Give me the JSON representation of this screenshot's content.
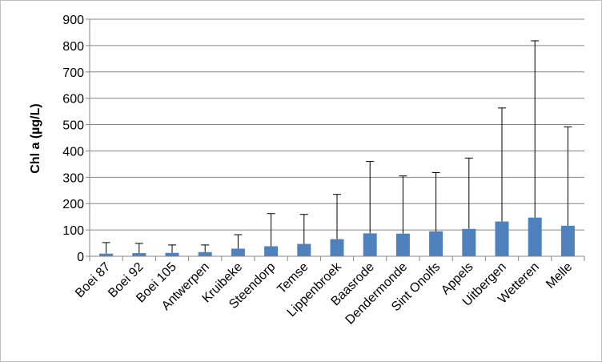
{
  "chart_data": {
    "type": "bar",
    "title": "",
    "xlabel": "",
    "ylabel": "Chl a (µg/L)",
    "ylim": [
      0,
      900
    ],
    "yticks": [
      0,
      100,
      200,
      300,
      400,
      500,
      600,
      700,
      800,
      900
    ],
    "grid": true,
    "legend": "none",
    "bar_color": "#4f81bd",
    "categories": [
      "Boei 87",
      "Boei 92",
      "Boei 105",
      "Antwerpen",
      "Kruibeke",
      "Steendorp",
      "Temse",
      "Lippenbroek",
      "Baasrode",
      "Dendermonde",
      "Sint Onolfs",
      "Appels",
      "Uitbergen",
      "Wetteren",
      "Melle"
    ],
    "values": [
      10,
      12,
      13,
      16,
      29,
      38,
      47,
      65,
      87,
      86,
      95,
      104,
      132,
      147,
      116
    ],
    "error_upper": [
      52,
      49,
      43,
      43,
      82,
      162,
      159,
      235,
      360,
      305,
      318,
      373,
      563,
      818,
      491
    ]
  }
}
